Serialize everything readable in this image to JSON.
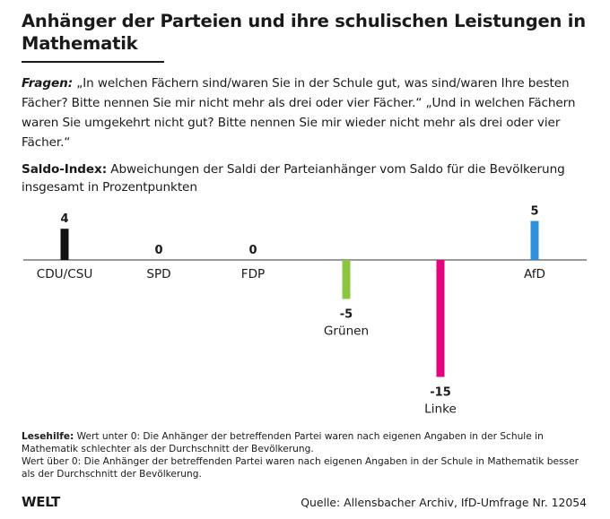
{
  "title": "Anhänger der Parteien und ihre schulischen Leistungen in Mathematik",
  "questions": {
    "label": "Fragen:",
    "text": "„In welchen Fächern sind/waren Sie in der Schule gut, was sind/waren Ihre besten Fächer? Bitte nennen Sie mir nicht mehr als drei oder vier Fächer.“ „Und in welchen Fächern waren Sie umgekehrt nicht gut? Bitte nennen Sie mir wieder nicht mehr als drei oder vier Fächer.“"
  },
  "saldo": {
    "label": "Saldo-Index:",
    "text": "Abweichungen der Saldi der Parteianhänger vom Saldo für die Bevölkerung insgesamt in Prozentpunkten"
  },
  "chart_data": {
    "type": "bar",
    "title": "Saldo-Index",
    "categories": [
      "CDU/CSU",
      "SPD",
      "FDP",
      "Grünen",
      "Linke",
      "AfD"
    ],
    "values": [
      4,
      0,
      0,
      -5,
      -15,
      5
    ],
    "colors": [
      "#111111",
      "#111111",
      "#111111",
      "#8cc63f",
      "#e6007e",
      "#2f8fd8"
    ],
    "ylim": [
      -15,
      5
    ],
    "xlabel": "",
    "ylabel": "",
    "grid": false
  },
  "footnote": {
    "label": "Lesehilfe:",
    "line1": "Wert unter 0: Die Anhänger der betreffenden Partei waren nach eigenen Angaben in der Schule in Mathematik schlechter als der Durchschnitt der Bevölkerung.",
    "line2": "Wert über 0: Die Anhänger der betreffenden Partei waren nach eigenen Angaben in der Schule in Mathematik besser als der Durchschnitt der Bevölkerung."
  },
  "brand": "WELT",
  "source": "Quelle: Allensbacher Archiv, IfD-Umfrage Nr. 12054"
}
